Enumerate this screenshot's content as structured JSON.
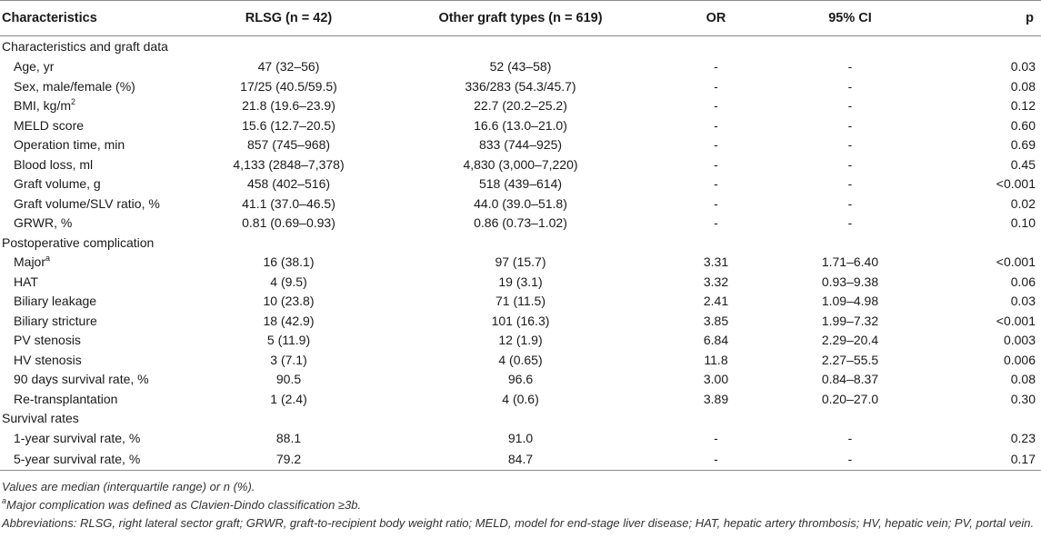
{
  "header": {
    "col1": "Characteristics",
    "col2": "RLSG (n = 42)",
    "col3": "Other graft types (n = 619)",
    "col4": "OR",
    "col5": "95% CI",
    "col6": "p"
  },
  "sections": {
    "s1": "Characteristics and graft data",
    "s2": "Postoperative complication",
    "s3": "Survival rates"
  },
  "rows": {
    "age": [
      "Age, yr",
      "47 (32–56)",
      "52 (43–58)",
      "-",
      "-",
      "0.03"
    ],
    "sex": [
      "Sex, male/female (%)",
      "17/25 (40.5/59.5)",
      "336/283 (54.3/45.7)",
      "-",
      "-",
      "0.08"
    ],
    "bmi": [
      "BMI, kg/m",
      "2",
      "21.8 (19.6–23.9)",
      "22.7 (20.2–25.2)",
      "-",
      "-",
      "0.12"
    ],
    "meld": [
      "MELD score",
      "15.6 (12.7–20.5)",
      "16.6 (13.0–21.0)",
      "-",
      "-",
      "0.60"
    ],
    "optime": [
      "Operation time, min",
      "857 (745–968)",
      "833 (744–925)",
      "-",
      "-",
      "0.69"
    ],
    "bloodloss": [
      "Blood loss, ml",
      "4,133 (2848–7,378)",
      "4,830 (3,000–7,220)",
      "-",
      "-",
      "0.45"
    ],
    "graftvol": [
      "Graft volume, g",
      "458 (402–516)",
      "518 (439–614)",
      "-",
      "-",
      "<0.001"
    ],
    "slv": [
      "Graft volume/SLV ratio, %",
      "41.1 (37.0–46.5)",
      "44.0 (39.0–51.8)",
      "-",
      "-",
      "0.02"
    ],
    "grwr": [
      "GRWR, %",
      "0.81 (0.69–0.93)",
      "0.86 (0.73–1.02)",
      "-",
      "-",
      "0.10"
    ],
    "major": [
      "Major",
      "a",
      "16 (38.1)",
      "97 (15.7)",
      "3.31",
      "1.71–6.40",
      "<0.001"
    ],
    "hat": [
      "HAT",
      "4 (9.5)",
      "19 (3.1)",
      "3.32",
      "0.93–9.38",
      "0.06"
    ],
    "leak": [
      "Biliary leakage",
      "10 (23.8)",
      "71 (11.5)",
      "2.41",
      "1.09–4.98",
      "0.03"
    ],
    "stricture": [
      "Biliary stricture",
      "18 (42.9)",
      "101 (16.3)",
      "3.85",
      "1.99–7.32",
      "<0.001"
    ],
    "pv": [
      "PV stenosis",
      "5 (11.9)",
      "12 (1.9)",
      "6.84",
      "2.29–20.4",
      "0.003"
    ],
    "hv": [
      "HV stenosis",
      "3 (7.1)",
      "4 (0.65)",
      "11.8",
      "2.27–55.5",
      "0.006"
    ],
    "d90": [
      "90 days survival rate, %",
      "90.5",
      "96.6",
      "3.00",
      "0.84–8.37",
      "0.08"
    ],
    "retx": [
      "Re-transplantation",
      "1 (2.4)",
      "4 (0.6)",
      "3.89",
      "0.20–27.0",
      "0.30"
    ],
    "y1": [
      "1-year survival rate, %",
      "88.1",
      "91.0",
      "-",
      "-",
      "0.23"
    ],
    "y5": [
      "5-year survival rate, %",
      "79.2",
      "84.7",
      "-",
      "-",
      "0.17"
    ]
  },
  "notes": {
    "n1": "Values are median (interquartile range) or n (%).",
    "n2_sup": "a",
    "n2": "Major complication was defined as Clavien-Dindo classification ≥3b.",
    "n3": "Abbreviations: RLSG, right lateral sector graft; GRWR, graft-to-recipient body weight ratio; MELD, model for end-stage liver disease; HAT, hepatic artery thrombosis; HV, hepatic vein; PV, portal vein."
  }
}
